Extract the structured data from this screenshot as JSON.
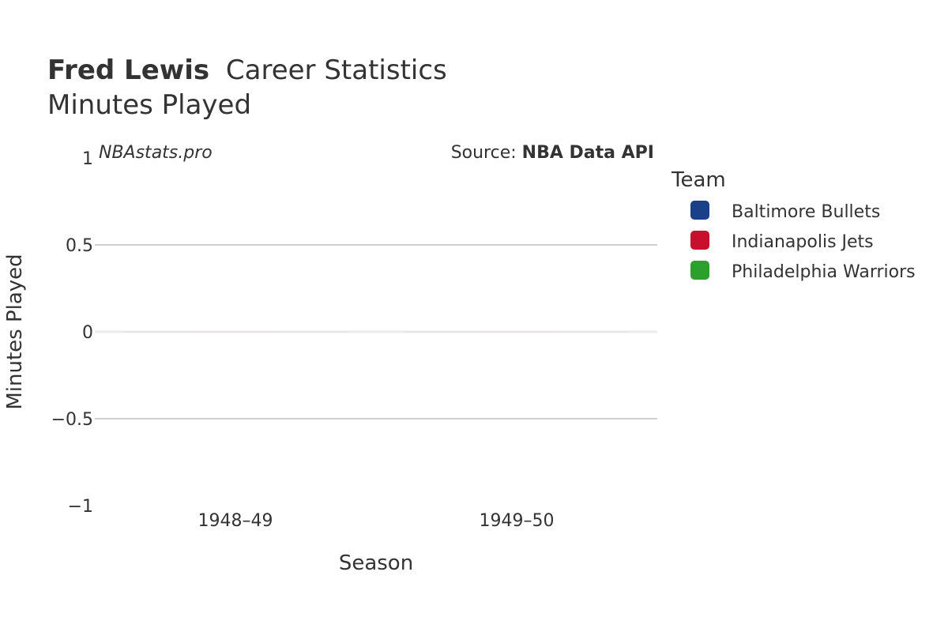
{
  "title": {
    "player": "Fred Lewis",
    "rest": "Career Statistics",
    "subtitle": "Minutes Played"
  },
  "watermark": "NBAstats.pro",
  "source": {
    "prefix": "Source: ",
    "name": "NBA Data API"
  },
  "legend": {
    "title": "Team",
    "items": [
      {
        "label": "Baltimore Bullets",
        "color": "#1a4089"
      },
      {
        "label": "Indianapolis Jets",
        "color": "#c8102e"
      },
      {
        "label": "Philadelphia Warriors",
        "color": "#2ca02c"
      }
    ]
  },
  "chart_data": {
    "type": "bar",
    "title": "Fred Lewis Career Statistics",
    "subtitle": "Minutes Played",
    "xlabel": "Season",
    "ylabel": "Minutes Played",
    "categories": [
      "1948–49",
      "1949–50"
    ],
    "ylim": [
      -1,
      1
    ],
    "yticks": [
      1,
      0.5,
      0,
      -0.5,
      -1
    ],
    "ytick_labels": [
      "1",
      "0.5",
      "0",
      "−0.5",
      "−1"
    ],
    "grid": true,
    "legend_position": "right",
    "series": [
      {
        "name": "Baltimore Bullets",
        "color": "#1a4089",
        "values": [
          0,
          0
        ]
      },
      {
        "name": "Indianapolis Jets",
        "color": "#c8102e",
        "values": [
          0,
          0
        ]
      },
      {
        "name": "Philadelphia Warriors",
        "color": "#2ca02c",
        "values": [
          0,
          0
        ]
      }
    ]
  }
}
